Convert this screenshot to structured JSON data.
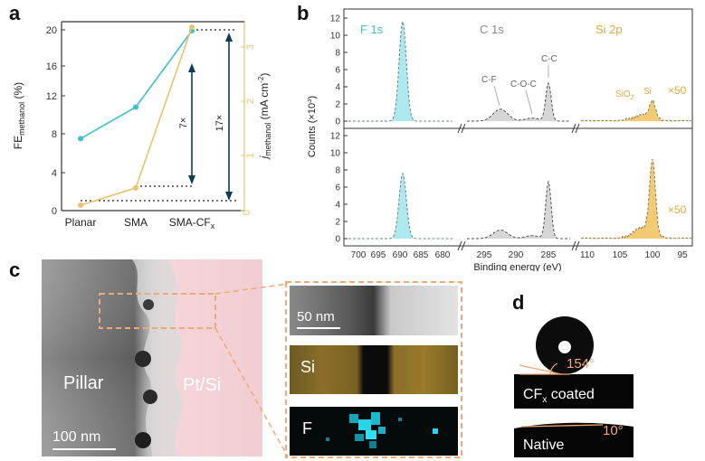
{
  "panels": {
    "a": "a",
    "b": "b",
    "c": "c",
    "d": "d"
  },
  "panel_a": {
    "ylabel_left_main": "FE",
    "ylabel_left_sub": "methanol",
    "ylabel_left_unit": " (%)",
    "ylabel_right_main": "j",
    "ylabel_right_sub": "methanol",
    "ylabel_right_unit": " (mA cm",
    "ylabel_right_exp": "-2",
    "ylabel_right_close": ")",
    "left_ticks": [
      "0",
      "4",
      "8",
      "12",
      "16",
      "20"
    ],
    "right_ticks": [
      "0",
      "1",
      "2",
      "3"
    ],
    "categories": [
      "Planar",
      "SMA",
      "SMA-CF"
    ],
    "category_last_sub": "x",
    "annot_7x": "7×",
    "annot_17x": "17×"
  },
  "panel_b": {
    "ylabel": "Counts (×10",
    "ylabel_exp": "3",
    "ylabel_close": ")",
    "xlabel": "Binding energy (eV)",
    "y_ticks": [
      "0",
      "2",
      "4",
      "6",
      "8",
      "10",
      "12"
    ],
    "x_ticks_f": [
      "700",
      "695",
      "690",
      "685",
      "680"
    ],
    "x_ticks_c": [
      "295",
      "290",
      "285"
    ],
    "x_ticks_si": [
      "110",
      "105",
      "100",
      "95"
    ],
    "label_f1s": "F 1s",
    "label_c1s": "C 1s",
    "label_si2p": "Si 2p",
    "label_cf": "C-F",
    "label_coc": "C-O-C",
    "label_cc": "C-C",
    "label_sio2": "SiO",
    "label_sio2_sub": "2",
    "label_si": "Si",
    "label_x50_top": "×50",
    "label_x50_bottom": "×50"
  },
  "panel_c": {
    "label_pillar": "Pillar",
    "label_ptsi": "Pt/Si",
    "scale_100": "100 nm",
    "scale_50": "50 nm",
    "map_si": "Si",
    "map_f": "F"
  },
  "panel_d": {
    "angle_coated": "154°",
    "label_coated": "CF",
    "label_coated_sub": "x",
    "label_coated_rest": " coated",
    "angle_native": "10°",
    "label_native": "Native"
  },
  "colors": {
    "cyan": "#3cc0cf",
    "gold": "#e9c36a",
    "c_gray": "#9a9a9a",
    "f_fill": "#9fe4ec",
    "c_fill": "#cfcfcf",
    "si_fill": "#f0c15c",
    "accent_orange": "#f0a874"
  },
  "chart_data": [
    {
      "type": "line",
      "categories": [
        "Planar",
        "SMA",
        "SMA-CFx"
      ],
      "series": [
        {
          "values": [
            8,
            11.5,
            20
          ]
        },
        {
          "values": [
            0.1,
            0.42,
            3.4
          ]
        }
      ],
      "ylim_left": [
        0,
        21
      ],
      "ylim_right": [
        0,
        3.5
      ]
    },
    {
      "type": "area",
      "xlabel": "Binding energy (eV)",
      "ylabel": "Counts (×103)",
      "ylim": [
        0,
        12
      ],
      "panels": [
        {
          "peaks": [
            {
              "name": "F 1s",
              "x": 689,
              "y": 11.6
            },
            {
              "name": "C-F",
              "x": 292,
              "y": 1.4
            },
            {
              "name": "C-C",
              "x": 285,
              "y": 4.4
            },
            {
              "name": "Si",
              "x": 100,
              "y": 2.0
            }
          ]
        },
        {
          "peaks": [
            {
              "name": "F 1s",
              "x": 689,
              "y": 7.6
            },
            {
              "name": "C-F",
              "x": 292,
              "y": 1.0
            },
            {
              "name": "C-C",
              "x": 285,
              "y": 6.6
            },
            {
              "name": "Si",
              "x": 100,
              "y": 8.5
            }
          ]
        }
      ]
    }
  ]
}
